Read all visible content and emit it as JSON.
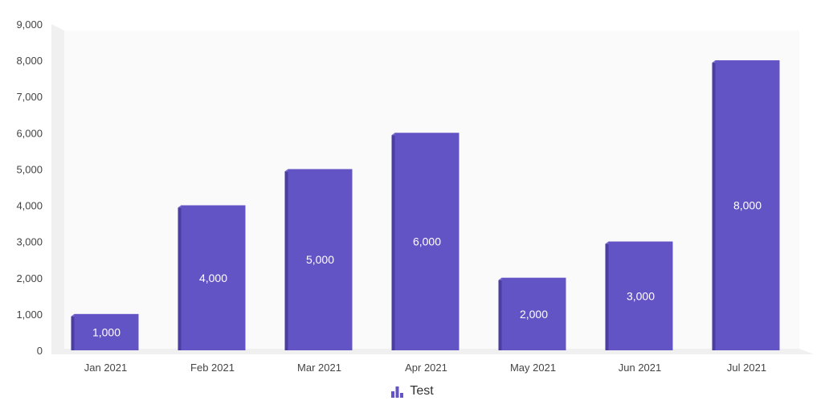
{
  "chart_data": {
    "type": "bar",
    "categories": [
      "Jan 2021",
      "Feb 2021",
      "Mar 2021",
      "Apr 2021",
      "May 2021",
      "Jun 2021",
      "Jul 2021"
    ],
    "series": [
      {
        "name": "Test",
        "values": [
          1000,
          4000,
          5000,
          6000,
          2000,
          3000,
          8000
        ],
        "data_labels": [
          "1,000",
          "4,000",
          "5,000",
          "6,000",
          "2,000",
          "3,000",
          "8,000"
        ]
      }
    ],
    "yticks": [
      "0",
      "1,000",
      "2,000",
      "3,000",
      "4,000",
      "5,000",
      "6,000",
      "7,000",
      "8,000",
      "9,000"
    ],
    "ylim": [
      0,
      9000
    ],
    "title": "",
    "xlabel": "",
    "ylabel": "",
    "grid": false,
    "legend_position": "bottom-center",
    "style": "3d-column"
  },
  "colors": {
    "bar_front": "#6354c6",
    "bar_side": "#4a3ea0",
    "bar_top": "#7a6fd6",
    "canvas_back": "#fafafa",
    "canvas_wall": "#f0f0f0",
    "legend_icon": "#6354c6"
  },
  "legend": {
    "label": "Test",
    "icon": "bar-chart-icon"
  }
}
